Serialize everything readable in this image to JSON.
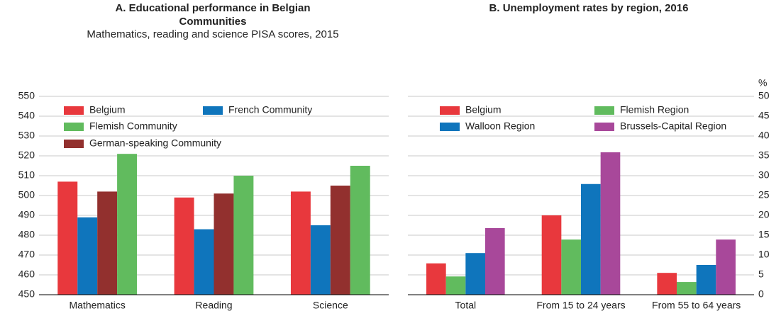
{
  "chart_data": [
    {
      "type": "bar",
      "title": "A. Educational performance in Belgian Communities",
      "subtitle": "Mathematics, reading and science PISA scores, 2015",
      "categories": [
        "Mathematics",
        "Reading",
        "Science"
      ],
      "series": [
        {
          "name": "Belgium",
          "color": "#e8383d",
          "values": [
            507,
            499,
            502
          ]
        },
        {
          "name": "French Community",
          "color": "#0f75bc",
          "values": [
            489,
            483,
            485
          ]
        },
        {
          "name": "German-speaking Community",
          "color": "#92302e",
          "values": [
            502,
            501,
            505
          ]
        },
        {
          "name": "Flemish Community",
          "color": "#61bb5e",
          "values": [
            521,
            510,
            515
          ]
        }
      ],
      "ylim": [
        450,
        550
      ],
      "yticks": [
        450,
        460,
        470,
        480,
        490,
        500,
        510,
        520,
        530,
        540,
        550
      ],
      "grid": true,
      "axis_side": "left"
    },
    {
      "type": "bar",
      "title": "B. Unemployment rates by region, 2016",
      "y_unit": "%",
      "categories": [
        "Total",
        "From 15 to 24 years",
        "From 55 to 64 years"
      ],
      "series": [
        {
          "name": "Belgium",
          "color": "#e8383d",
          "values": [
            7.9,
            20,
            5.5
          ]
        },
        {
          "name": "Flemish Region",
          "color": "#61bb5e",
          "values": [
            4.6,
            13.9,
            3.2
          ]
        },
        {
          "name": "Walloon Region",
          "color": "#0f75bc",
          "values": [
            10.5,
            27.9,
            7.5
          ]
        },
        {
          "name": "Brussels-Capital Region",
          "color": "#a8489a",
          "values": [
            16.8,
            35.9,
            13.9
          ]
        }
      ],
      "ylim": [
        0,
        50
      ],
      "yticks": [
        0,
        5,
        10,
        15,
        20,
        25,
        30,
        35,
        40,
        45,
        50
      ],
      "grid": true,
      "axis_side": "right"
    }
  ]
}
